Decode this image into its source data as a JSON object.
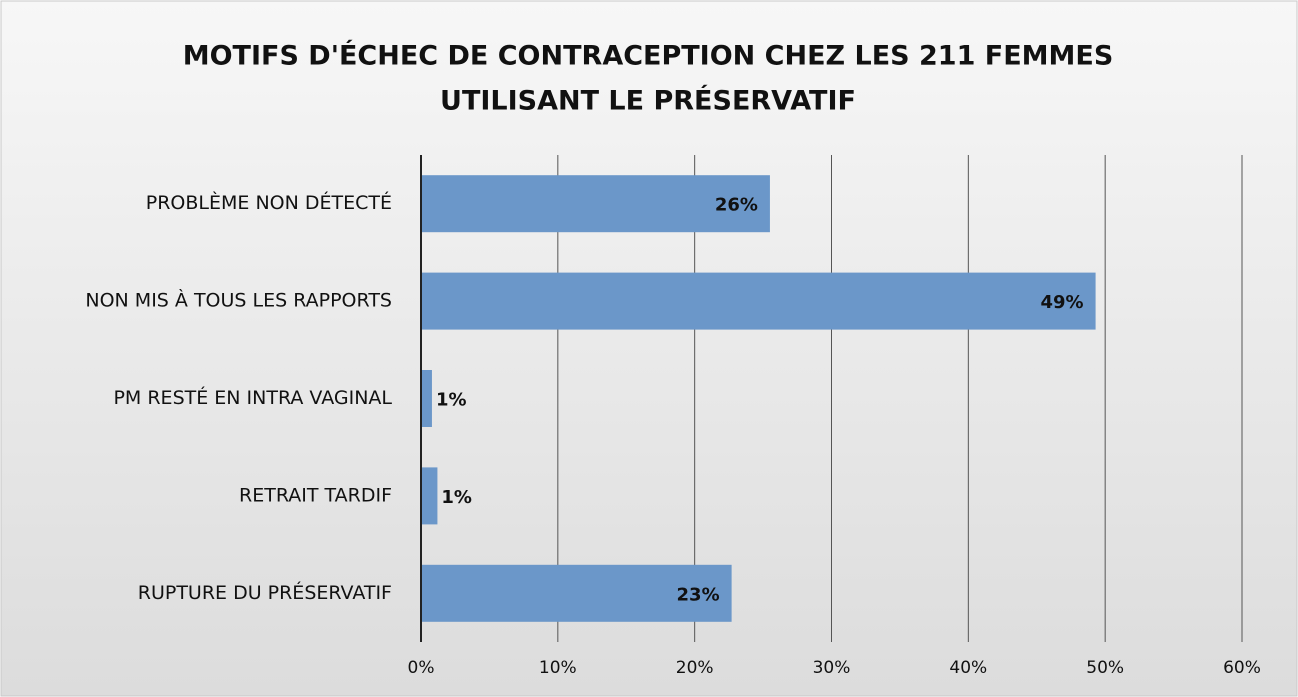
{
  "chart_data": {
    "type": "hbar",
    "title": [
      "MOTIFS D'ÉCHEC DE CONTRACEPTION CHEZ LES 211 FEMMES",
      "UTILISANT LE PRÉSERVATIF"
    ],
    "categories": [
      "PROBLÈME NON DÉTECTÉ",
      "NON MIS À TOUS LES RAPPORTS",
      "PM RESTÉ EN INTRA VAGINAL",
      "RETRAIT TARDIF",
      "RUPTURE DU PRÉSERVATIF"
    ],
    "values": [
      25.5,
      49.3,
      0.8,
      1.2,
      22.7
    ],
    "value_labels": [
      "26%",
      "49%",
      "1%",
      "1%",
      "23%"
    ],
    "color": "#6b97c9",
    "xlim": [
      0,
      60
    ],
    "xticks": [
      {
        "value": 0,
        "label": "0%"
      },
      {
        "value": 10,
        "label": "10%"
      },
      {
        "value": 20,
        "label": "20%"
      },
      {
        "value": 30,
        "label": "30%"
      },
      {
        "value": 40,
        "label": "40%"
      },
      {
        "value": 50,
        "label": "50%"
      },
      {
        "value": 60,
        "label": "60%"
      }
    ],
    "grid": true
  }
}
